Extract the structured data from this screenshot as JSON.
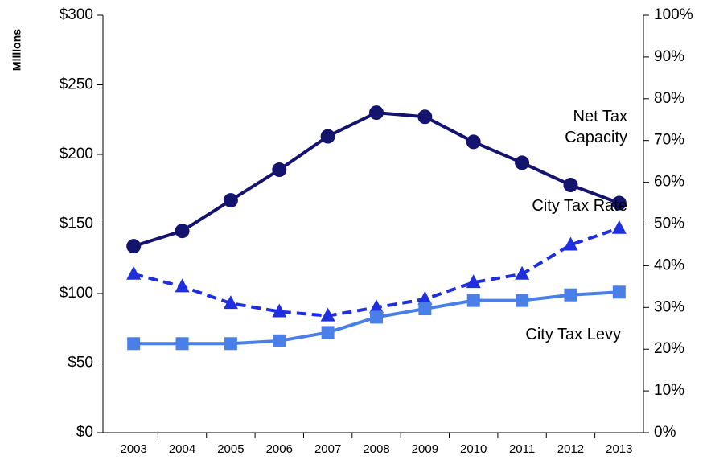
{
  "chart_data": {
    "type": "line",
    "ylabel": "Millions",
    "categories": [
      "2003",
      "2004",
      "2005",
      "2006",
      "2007",
      "2008",
      "2009",
      "2010",
      "2011",
      "2012",
      "2013"
    ],
    "series": [
      {
        "name": "Net Tax Capacity",
        "color": "#14146e",
        "marker": "circle",
        "dash": false,
        "values": [
          134,
          145,
          167,
          189,
          213,
          230,
          227,
          209,
          194,
          178,
          165
        ]
      },
      {
        "name": "City Tax Rate",
        "color": "#1f2fe0",
        "marker": "triangle",
        "dash": true,
        "axis": "y2",
        "values": [
          38,
          35,
          31,
          29,
          28,
          30,
          32,
          36,
          38,
          45,
          49
        ]
      },
      {
        "name": "City Tax Levy",
        "color": "#4a7fe8",
        "marker": "square",
        "dash": false,
        "values": [
          64,
          64,
          64,
          66,
          72,
          83,
          89,
          95,
          95,
          99,
          101
        ]
      }
    ],
    "ylim": [
      0,
      300
    ],
    "yticks": [
      {
        "value": 0,
        "label": "$0"
      },
      {
        "value": 50,
        "label": "$50"
      },
      {
        "value": 100,
        "label": "$100"
      },
      {
        "value": 150,
        "label": "$150"
      },
      {
        "value": 200,
        "label": "$200"
      },
      {
        "value": 250,
        "label": "$250"
      },
      {
        "value": 300,
        "label": "$300"
      }
    ],
    "y2lim": [
      0,
      100
    ],
    "y2ticks": [
      {
        "value": 0,
        "label": "0%"
      },
      {
        "value": 10,
        "label": "10%"
      },
      {
        "value": 20,
        "label": "20%"
      },
      {
        "value": 30,
        "label": "30%"
      },
      {
        "value": 40,
        "label": "40%"
      },
      {
        "value": 50,
        "label": "50%"
      },
      {
        "value": 60,
        "label": "60%"
      },
      {
        "value": 70,
        "label": "70%"
      },
      {
        "value": 80,
        "label": "80%"
      },
      {
        "value": 90,
        "label": "90%"
      },
      {
        "value": 100,
        "label": "100%"
      }
    ]
  }
}
